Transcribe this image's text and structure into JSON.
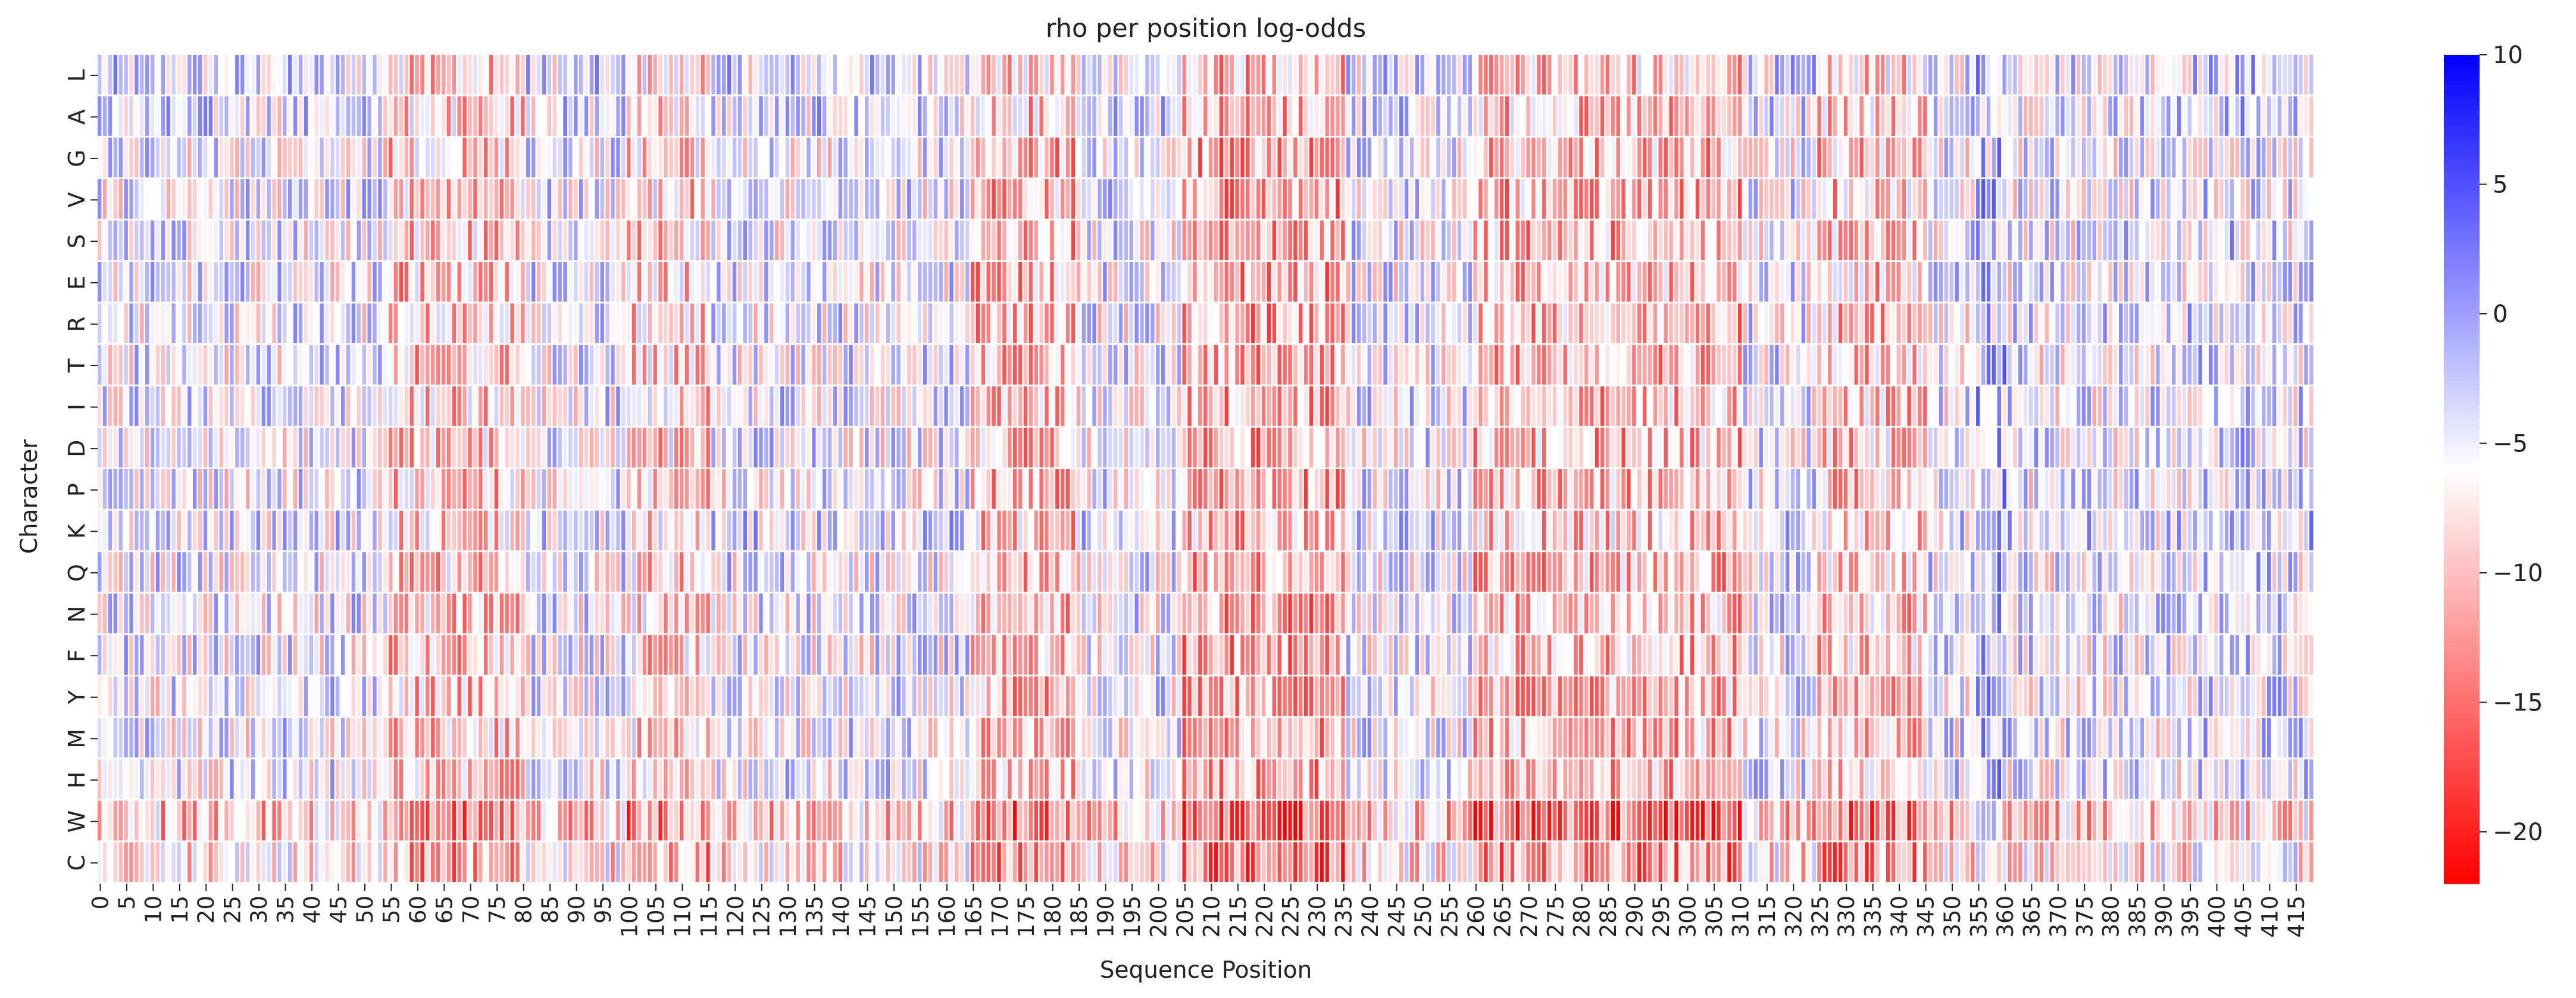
{
  "chart_data": {
    "type": "heatmap",
    "title": "rho per position log-odds",
    "xlabel": "Sequence Position",
    "ylabel": "Character",
    "rows": [
      "L",
      "A",
      "G",
      "V",
      "S",
      "E",
      "R",
      "T",
      "I",
      "D",
      "P",
      "K",
      "Q",
      "N",
      "F",
      "Y",
      "M",
      "H",
      "W",
      "C"
    ],
    "n_positions": 419,
    "x_tick_step": 5,
    "x_tick_labels": [
      "0",
      "5",
      "10",
      "15",
      "20",
      "25",
      "30",
      "35",
      "40",
      "45",
      "50",
      "55",
      "60",
      "65",
      "70",
      "75",
      "80",
      "85",
      "90",
      "95",
      "100",
      "105",
      "110",
      "115",
      "120",
      "125",
      "130",
      "135",
      "140",
      "145",
      "150",
      "155",
      "160",
      "165",
      "170",
      "175",
      "180",
      "185",
      "190",
      "195",
      "200",
      "205",
      "210",
      "215",
      "220",
      "225",
      "230",
      "235",
      "240",
      "245",
      "250",
      "255",
      "260",
      "265",
      "270",
      "275",
      "280",
      "285",
      "290",
      "295",
      "300",
      "305",
      "310",
      "315",
      "320",
      "325",
      "330",
      "335",
      "340",
      "345",
      "350",
      "355",
      "360",
      "365",
      "370",
      "375",
      "380",
      "385",
      "390",
      "395",
      "400",
      "405",
      "410",
      "415"
    ],
    "colormap": "bwr_r",
    "vmin": -22,
    "vmax": 10,
    "center": -6,
    "colorbar_ticks": [
      "10",
      "5",
      "0",
      "−5",
      "−10",
      "−15",
      "−20"
    ],
    "colorbar_tick_values": [
      10,
      5,
      0,
      -5,
      -10,
      -15,
      -20
    ],
    "colors": {
      "high": "#0000ff",
      "mid": "#ffffff",
      "low": "#ff0000"
    },
    "column_profile": [
      {
        "range": [
          0,
          35
        ],
        "mean": -5,
        "note": "mixed blue/red"
      },
      {
        "range": [
          55,
          80
        ],
        "mean": -10,
        "note": "strong red band"
      },
      {
        "range": [
          100,
          115
        ],
        "mean": -9
      },
      {
        "range": [
          165,
          185
        ],
        "mean": -11
      },
      {
        "range": [
          205,
          235
        ],
        "mean": -12,
        "note": "deepest red band"
      },
      {
        "range": [
          260,
          310
        ],
        "mean": -11
      },
      {
        "range": [
          325,
          345
        ],
        "mean": -10
      },
      {
        "range": [
          355,
          360
        ],
        "mean": -2,
        "note": "dark blue spikes"
      },
      {
        "range": [
          395,
          418
        ],
        "mean": -4
      }
    ],
    "row_bias": {
      "W": -5,
      "C": -3,
      "K": 1,
      "L": 1,
      "A": 1
    }
  }
}
